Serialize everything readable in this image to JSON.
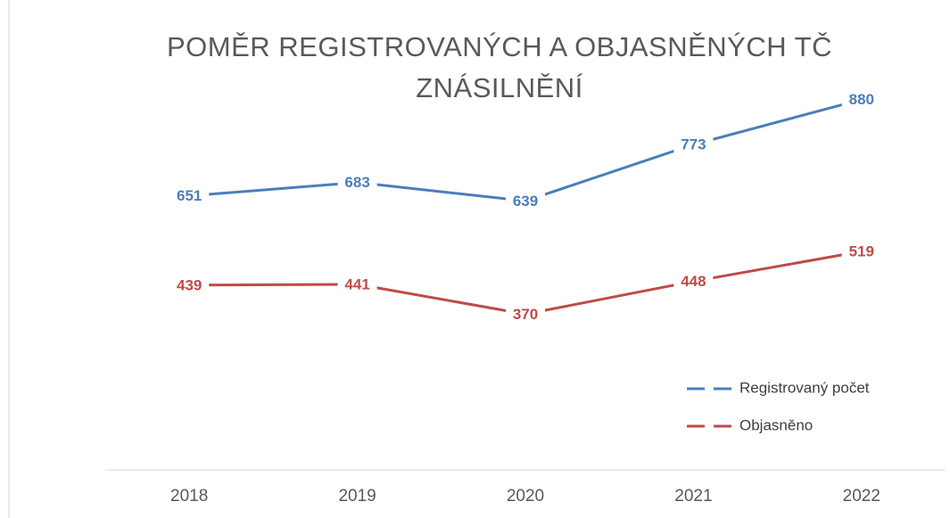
{
  "chart_data": {
    "type": "line",
    "title": "POMĚR REGISTROVANÝCH A OBJASNĚNÝCH TČ ZNÁSILNĚNÍ",
    "categories": [
      "2018",
      "2019",
      "2020",
      "2021",
      "2022"
    ],
    "series": [
      {
        "name": "Registrovaný počet",
        "color": "#4a7ebb",
        "values": [
          651,
          683,
          639,
          773,
          880
        ]
      },
      {
        "name": "Objasněno",
        "color": "#be4b48",
        "values": [
          439,
          441,
          370,
          448,
          519
        ]
      }
    ],
    "ylim": [
      0,
      1000
    ],
    "legend": "right"
  }
}
